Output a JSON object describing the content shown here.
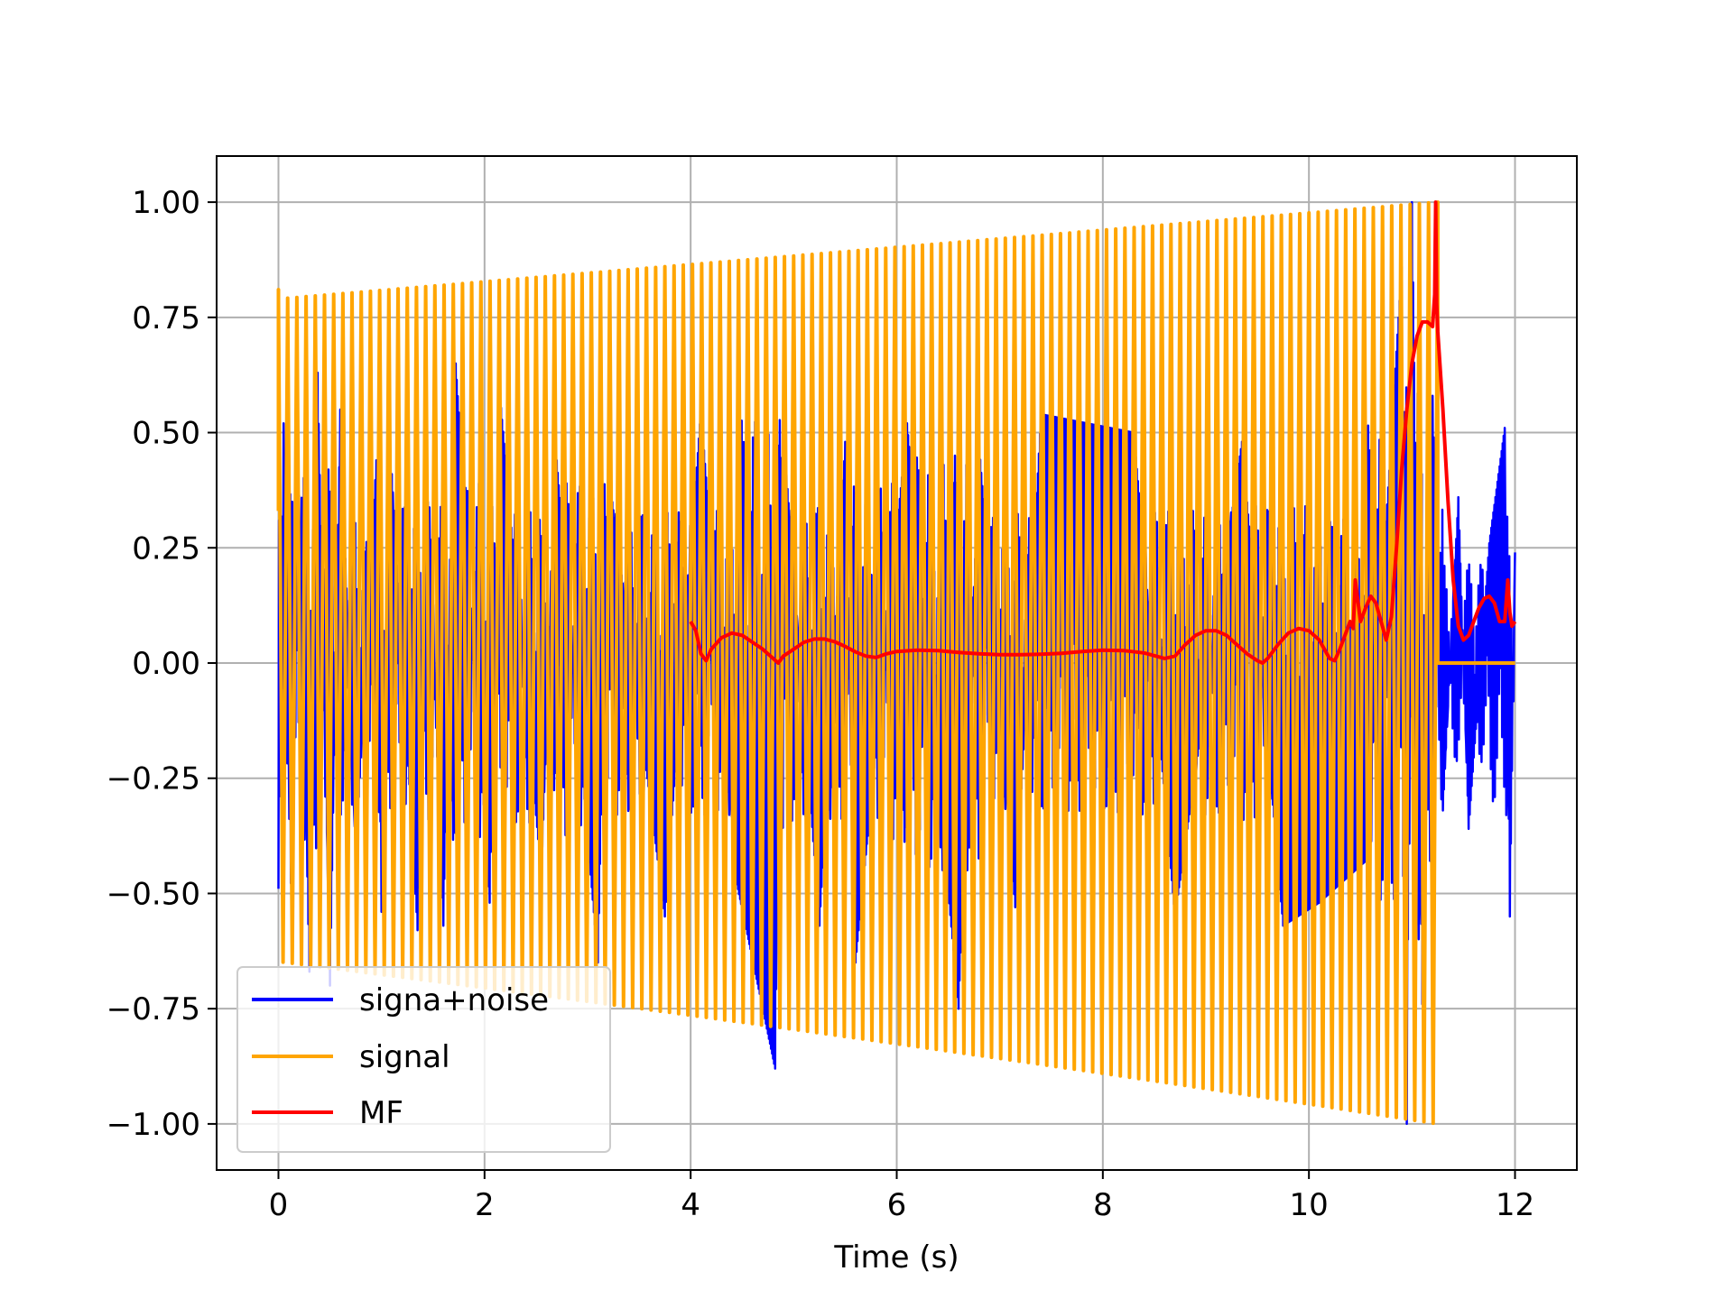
{
  "chart_data": {
    "type": "line",
    "title": "",
    "xlabel": "Time (s)",
    "ylabel": "",
    "xlim": [
      -0.6,
      12.6
    ],
    "ylim": [
      -1.1,
      1.1
    ],
    "grid": true,
    "legend_position": "lower-left",
    "x_ticks": [
      0,
      2,
      4,
      6,
      8,
      10,
      12
    ],
    "x_tick_labels": [
      "0",
      "2",
      "4",
      "6",
      "8",
      "10",
      "12"
    ],
    "y_ticks": [
      1.0,
      0.75,
      0.5,
      0.25,
      0.0,
      -0.25,
      -0.5,
      -0.75,
      -1.0
    ],
    "y_tick_labels": [
      "1.00",
      "0.75",
      "0.50",
      "0.25",
      "0.00",
      "−0.25",
      "−0.50",
      "−0.75",
      "−1.00"
    ],
    "series": [
      {
        "name": "signa+noise",
        "color": "#0000ff",
        "x_range": [
          0,
          12
        ],
        "peaks": [
          [
            0.0,
            -0.49
          ],
          [
            0.05,
            0.52
          ],
          [
            0.13,
            -0.62
          ],
          [
            0.18,
            0.57
          ],
          [
            0.3,
            -0.67
          ],
          [
            0.38,
            0.63
          ],
          [
            0.5,
            -0.7
          ],
          [
            0.6,
            0.55
          ],
          [
            0.75,
            -0.42
          ],
          [
            0.95,
            0.44
          ],
          [
            1.0,
            -0.54
          ],
          [
            1.1,
            0.41
          ],
          [
            1.35,
            -0.58
          ],
          [
            1.45,
            0.35
          ],
          [
            1.6,
            -0.57
          ],
          [
            1.72,
            0.65
          ],
          [
            2.05,
            -0.52
          ],
          [
            2.15,
            0.58
          ],
          [
            2.55,
            -0.46
          ],
          [
            2.7,
            0.44
          ],
          [
            3.1,
            -0.65
          ],
          [
            3.2,
            0.42
          ],
          [
            3.75,
            -0.55
          ],
          [
            4.1,
            0.55
          ],
          [
            4.45,
            -0.48
          ],
          [
            4.82,
            -0.88
          ],
          [
            4.9,
            0.5
          ],
          [
            5.25,
            -0.57
          ],
          [
            5.5,
            0.48
          ],
          [
            5.6,
            -0.65
          ],
          [
            6.1,
            0.52
          ],
          [
            6.6,
            -0.75
          ],
          [
            6.8,
            0.47
          ],
          [
            7.15,
            -0.53
          ],
          [
            7.4,
            0.54
          ],
          [
            8.3,
            0.5
          ],
          [
            8.7,
            -0.55
          ],
          [
            9.35,
            0.48
          ],
          [
            9.75,
            -0.57
          ],
          [
            10.1,
            -0.52
          ],
          [
            10.55,
            -0.43
          ],
          [
            10.9,
            0.86
          ],
          [
            10.95,
            -1.0
          ],
          [
            11.0,
            1.0
          ],
          [
            11.1,
            -0.74
          ],
          [
            11.2,
            0.58
          ],
          [
            11.3,
            -0.32
          ],
          [
            11.45,
            0.36
          ],
          [
            11.55,
            -0.36
          ],
          [
            11.75,
            0.26
          ],
          [
            11.9,
            0.51
          ],
          [
            11.95,
            -0.55
          ],
          [
            12.0,
            0.24
          ]
        ]
      },
      {
        "name": "signal",
        "color": "#ffa500",
        "x_range": [
          0,
          11.25
        ],
        "start_values": [
          0.33,
          0.81
        ],
        "envelope_start": 0.79,
        "envelope_end": 1.0,
        "cycles": 126,
        "value_after_end": 0.0,
        "end_x": 12
      },
      {
        "name": "MF",
        "color": "#ff0000",
        "x": [
          4.0,
          4.05,
          4.1,
          4.15,
          4.2,
          4.3,
          4.4,
          4.5,
          4.6,
          4.7,
          4.8,
          4.85,
          4.9,
          5.0,
          5.1,
          5.2,
          5.3,
          5.4,
          5.5,
          5.6,
          5.7,
          5.8,
          5.9,
          6.0,
          6.2,
          6.4,
          6.6,
          6.8,
          7.0,
          7.2,
          7.4,
          7.6,
          7.8,
          8.0,
          8.2,
          8.4,
          8.6,
          8.7,
          8.8,
          8.9,
          9.0,
          9.1,
          9.2,
          9.3,
          9.4,
          9.5,
          9.55,
          9.6,
          9.7,
          9.8,
          9.9,
          10.0,
          10.1,
          10.2,
          10.25,
          10.3,
          10.35,
          10.4,
          10.43,
          10.45,
          10.5,
          10.55,
          10.6,
          10.65,
          10.7,
          10.75,
          10.8,
          10.85,
          10.9,
          10.95,
          11.0,
          11.05,
          11.1,
          11.15,
          11.2,
          11.22,
          11.23,
          11.24,
          11.25,
          11.3,
          11.35,
          11.4,
          11.45,
          11.5,
          11.55,
          11.6,
          11.65,
          11.7,
          11.75,
          11.8,
          11.85,
          11.9,
          11.93,
          11.95,
          11.97,
          12.0
        ],
        "y": [
          0.09,
          0.07,
          0.02,
          0.005,
          0.03,
          0.055,
          0.065,
          0.06,
          0.045,
          0.03,
          0.01,
          0.0,
          0.015,
          0.03,
          0.045,
          0.052,
          0.052,
          0.046,
          0.036,
          0.024,
          0.015,
          0.012,
          0.02,
          0.025,
          0.028,
          0.027,
          0.023,
          0.02,
          0.018,
          0.018,
          0.019,
          0.021,
          0.025,
          0.028,
          0.027,
          0.022,
          0.01,
          0.015,
          0.04,
          0.06,
          0.07,
          0.07,
          0.06,
          0.04,
          0.02,
          0.005,
          0.0,
          0.01,
          0.04,
          0.065,
          0.075,
          0.07,
          0.05,
          0.01,
          0.005,
          0.03,
          0.06,
          0.09,
          0.075,
          0.18,
          0.09,
          0.12,
          0.145,
          0.13,
          0.09,
          0.05,
          0.1,
          0.25,
          0.42,
          0.55,
          0.65,
          0.71,
          0.74,
          0.74,
          0.73,
          0.8,
          1.0,
          0.78,
          0.72,
          0.55,
          0.35,
          0.18,
          0.08,
          0.05,
          0.06,
          0.09,
          0.12,
          0.14,
          0.145,
          0.13,
          0.09,
          0.09,
          0.18,
          0.11,
          0.08,
          0.09
        ]
      }
    ]
  }
}
